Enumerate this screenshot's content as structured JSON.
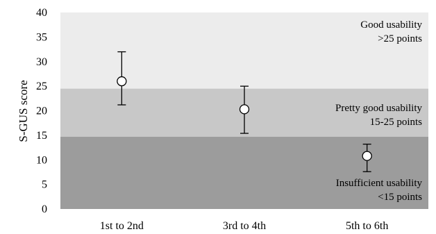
{
  "chart_data": {
    "type": "scatter",
    "categories": [
      "1st to 2nd",
      "3rd to 4th",
      "5th to 6th"
    ],
    "series": [
      {
        "values": [
          26.0,
          20.3,
          10.8
        ],
        "error_low": [
          21.2,
          15.4,
          7.6
        ],
        "error_high": [
          32.0,
          25.0,
          13.2
        ]
      }
    ],
    "xlabel": "",
    "ylabel": "S-GUS score",
    "ylim": [
      0,
      40
    ],
    "yticks": [
      0,
      5,
      10,
      15,
      20,
      25,
      30,
      35,
      40
    ],
    "grid": false,
    "bands": [
      {
        "from": 24.5,
        "to": 40,
        "color": "#ececec",
        "label_line1": "Good usability",
        "label_line2": ">25 points"
      },
      {
        "from": 14.7,
        "to": 24.5,
        "color": "#c8c8c8",
        "label_line1": "Pretty good usability",
        "label_line2": "15-25 points"
      },
      {
        "from": 0,
        "to": 14.7,
        "color": "#9c9c9c",
        "label_line1": "Insufficient  usability",
        "label_line2": "<15 points"
      }
    ]
  }
}
